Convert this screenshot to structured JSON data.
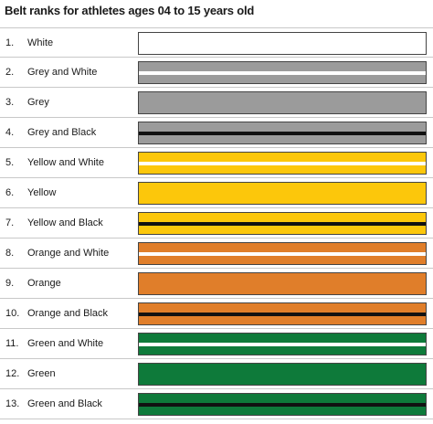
{
  "title": "Belt ranks for athletes ages 04 to 15 years old",
  "colors": {
    "white": "#ffffff",
    "grey": "#9b9b9b",
    "black": "#111111",
    "yellow": "#fcc70b",
    "orange": "#e07e2a",
    "green": "#0e7a3a"
  },
  "belts": [
    {
      "num": "1.",
      "label": "White",
      "base": "white",
      "stripe": ""
    },
    {
      "num": "2.",
      "label": "Grey and White",
      "base": "grey",
      "stripe": "white"
    },
    {
      "num": "3.",
      "label": "Grey",
      "base": "grey",
      "stripe": ""
    },
    {
      "num": "4.",
      "label": "Grey and Black",
      "base": "grey",
      "stripe": "black"
    },
    {
      "num": "5.",
      "label": "Yellow and White",
      "base": "yellow",
      "stripe": "white"
    },
    {
      "num": "6.",
      "label": "Yellow",
      "base": "yellow",
      "stripe": ""
    },
    {
      "num": "7.",
      "label": "Yellow and Black",
      "base": "yellow",
      "stripe": "black"
    },
    {
      "num": "8.",
      "label": "Orange and White",
      "base": "orange",
      "stripe": "white"
    },
    {
      "num": "9.",
      "label": "Orange",
      "base": "orange",
      "stripe": ""
    },
    {
      "num": "10.",
      "label": "Orange and Black",
      "base": "orange",
      "stripe": "black"
    },
    {
      "num": "11.",
      "label": "Green and White",
      "base": "green",
      "stripe": "white"
    },
    {
      "num": "12.",
      "label": "Green",
      "base": "green",
      "stripe": ""
    },
    {
      "num": "13.",
      "label": "Green and Black",
      "base": "green",
      "stripe": "black"
    }
  ]
}
